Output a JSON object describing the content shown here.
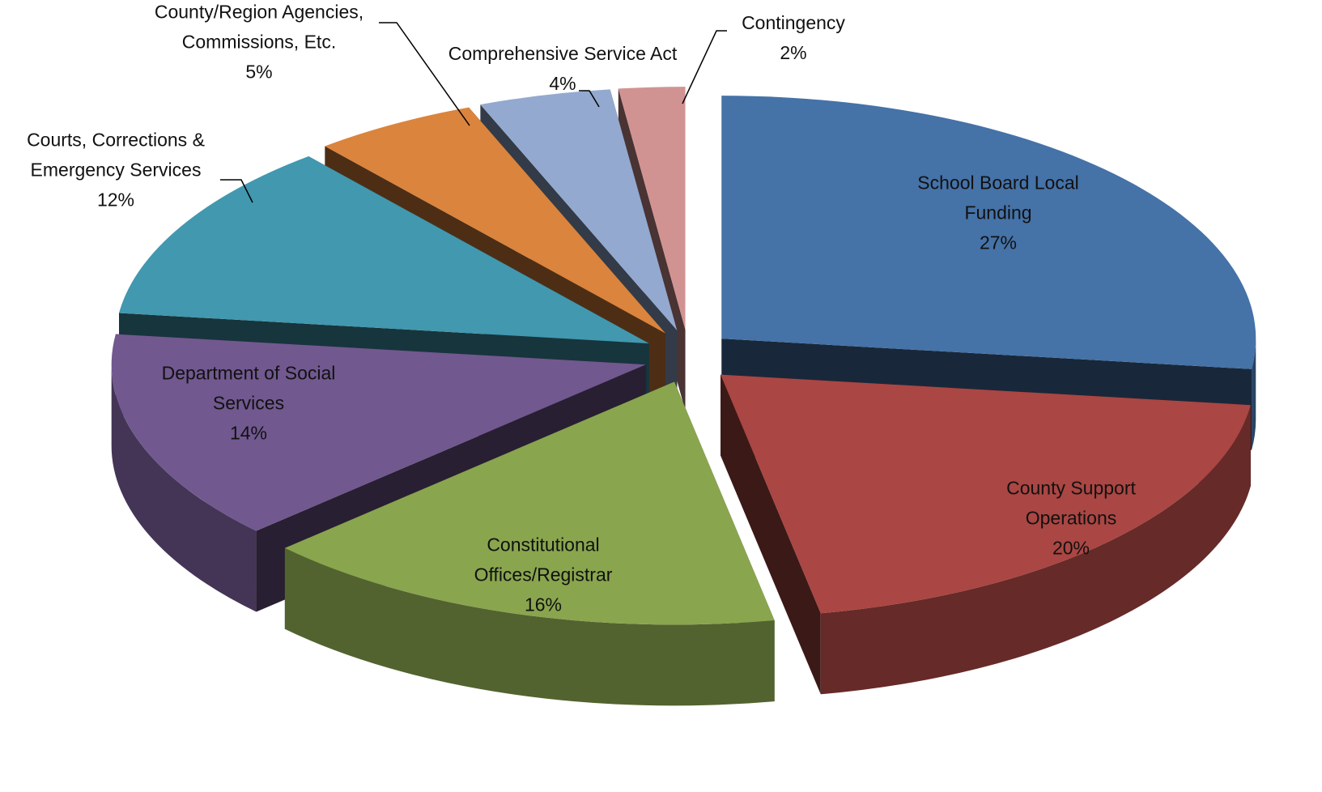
{
  "chart_data": {
    "type": "pie",
    "categories": [
      "School Board Local Funding",
      "County Support Operations",
      "Constitutional Offices/Registrar",
      "Department of Social Services",
      "Courts, Corrections & Emergency Services",
      "County/Region Agencies, Commissions, Etc.",
      "Comprehensive Service Act",
      "Contingency"
    ],
    "values": [
      27,
      20,
      16,
      14,
      12,
      5,
      4,
      2
    ],
    "value_labels": [
      "27%",
      "20%",
      "16%",
      "14%",
      "12%",
      "5%",
      "4%",
      "2%"
    ],
    "colors": [
      "#4572a7",
      "#aa4643",
      "#89a54e",
      "#71588f",
      "#4198af",
      "#db843d",
      "#93a9cf",
      "#d19392"
    ]
  }
}
